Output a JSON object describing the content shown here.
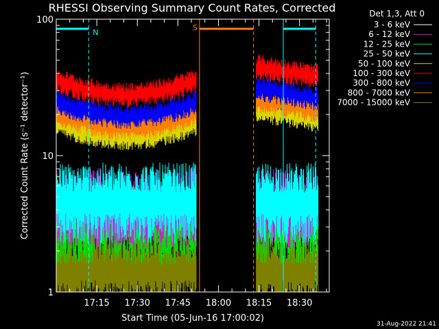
{
  "chart_data": {
    "type": "line",
    "title": "RHESSI Observing Summary Count Rates, Corrected",
    "xlabel": "Start Time (05-Jun-16 17:00:02)",
    "ylabel": "Corrected Count Rate (s⁻¹ detector⁻¹)",
    "y_scale": "log",
    "ylim": [
      1,
      100
    ],
    "y_ticks": [
      {
        "value": 100,
        "label": "100"
      },
      {
        "value": 10,
        "label": "10"
      },
      {
        "value": 1,
        "label": "1"
      }
    ],
    "x_range_minutes": [
      0,
      101
    ],
    "x_ticks": [
      {
        "value": 15,
        "label": "17:15"
      },
      {
        "value": 30,
        "label": "17:30"
      },
      {
        "value": 45,
        "label": "17:45"
      },
      {
        "value": 60,
        "label": "18:00"
      },
      {
        "value": 75,
        "label": "18:15"
      },
      {
        "value": 90,
        "label": "18:30"
      }
    ],
    "legend_title": "Det 1,3, Att 0",
    "legend_position": "outside-right",
    "series": [
      {
        "name": "3 - 6 keV",
        "color": "#ffffff",
        "level": null
      },
      {
        "name": "6 - 12 keV",
        "color": "#d21ed2",
        "level": 4.2
      },
      {
        "name": "12 - 25 keV",
        "color": "#00e000",
        "level": 3.2
      },
      {
        "name": "25 - 50 keV",
        "color": "#00ffff",
        "level": 4.6
      },
      {
        "name": "50 - 100 keV",
        "color": "#d8d800",
        "level": 17.5
      },
      {
        "name": "100 - 300 keV",
        "color": "#ff0000",
        "level": 36.0
      },
      {
        "name": "300 - 800 keV",
        "color": "#0000ff",
        "level": 25.0
      },
      {
        "name": "800 - 7000 keV",
        "color": "#ff8000",
        "level": 20.5
      },
      {
        "name": "7000 - 15000 keV",
        "color": "#808000",
        "level": 1.5
      }
    ],
    "data_segments": [
      {
        "start": 0,
        "end": 52
      },
      {
        "start": 74,
        "end": 97
      }
    ],
    "annotations": [
      {
        "label": "N",
        "type": "night",
        "start": 0,
        "end": 12,
        "color": "#00ffff"
      },
      {
        "label": "",
        "type": "night",
        "start": 84,
        "end": 96,
        "color": "#00ffff"
      },
      {
        "label": "S",
        "type": "saa",
        "start": 53,
        "end": 73,
        "color": "#ff8000"
      }
    ],
    "timestamp": "31-Aug-2022 21:41"
  }
}
